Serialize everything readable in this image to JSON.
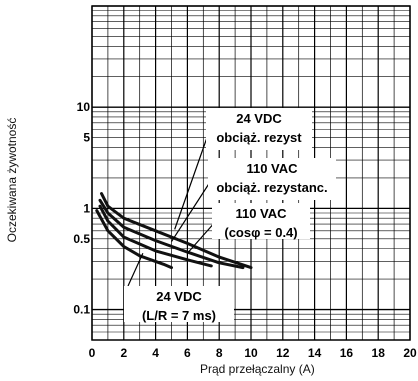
{
  "chart_data": {
    "type": "line",
    "xlabel": "Prąd przełączalny (A)",
    "ylabel": "Oczekiwana żywotność",
    "x_ticks": [
      "0",
      "2",
      "4",
      "6",
      "8",
      "10",
      "12",
      "14",
      "16",
      "18",
      "20"
    ],
    "y_ticks": [
      "10",
      "5",
      "1",
      "0.5",
      "0.1"
    ],
    "xlim": [
      0,
      20
    ],
    "ylim": [
      0.05,
      100
    ],
    "y_scale": "log",
    "grid": true,
    "series": [
      {
        "name": "24 VDC obciąż. rezyst",
        "color": "#111111",
        "points": [
          [
            0.6,
            1.4
          ],
          [
            1,
            1.05
          ],
          [
            2,
            0.8
          ],
          [
            4,
            0.6
          ],
          [
            6,
            0.45
          ],
          [
            8,
            0.33
          ],
          [
            10,
            0.26
          ]
        ]
      },
      {
        "name": "110 VAC obciąż. rezystanc.",
        "color": "#111111",
        "points": [
          [
            0.5,
            1.2
          ],
          [
            1,
            0.9
          ],
          [
            2,
            0.65
          ],
          [
            4,
            0.48
          ],
          [
            6,
            0.37
          ],
          [
            8,
            0.29
          ],
          [
            9.5,
            0.26
          ]
        ]
      },
      {
        "name": "110 VAC (cosφ = 0.4)",
        "color": "#111111",
        "points": [
          [
            0.5,
            1.05
          ],
          [
            1,
            0.75
          ],
          [
            2,
            0.52
          ],
          [
            4,
            0.38
          ],
          [
            6,
            0.31
          ],
          [
            7.5,
            0.27
          ]
        ]
      },
      {
        "name": "24 VDC (L/R = 7 ms)",
        "color": "#111111",
        "points": [
          [
            0.3,
            0.95
          ],
          [
            1,
            0.6
          ],
          [
            2,
            0.42
          ],
          [
            3,
            0.34
          ],
          [
            4.5,
            0.28
          ],
          [
            5,
            0.26
          ]
        ]
      }
    ],
    "annotations": [
      {
        "lines": [
          "24 VDC",
          "obciąż. rezyst"
        ]
      },
      {
        "lines": [
          "110 VAC",
          "obciąż. rezystanc."
        ]
      },
      {
        "lines": [
          "110 VAC",
          "(cosφ = 0.4)"
        ]
      },
      {
        "lines": [
          "24 VDC",
          "(L/R = 7 ms)"
        ]
      }
    ]
  }
}
